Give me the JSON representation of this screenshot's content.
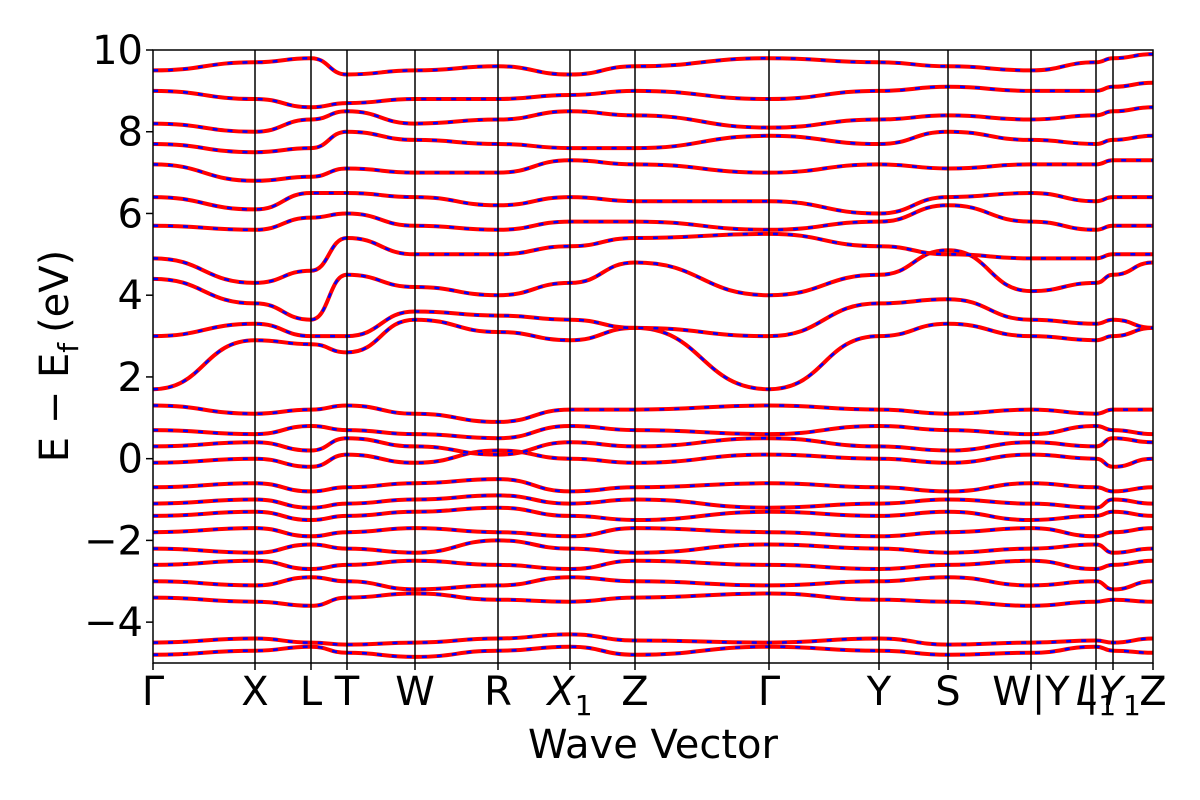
{
  "chart_data": {
    "type": "line",
    "title": "",
    "xlabel": "Wave Vector",
    "ylabel": "E − E",
    "ylabel_subscript": "f",
    "ylabel_unit": "(eV)",
    "ylim": [
      -5,
      10
    ],
    "yticks": [
      -4,
      -2,
      0,
      2,
      4,
      6,
      8,
      10
    ],
    "ytick_labels": [
      "−4",
      "−2",
      "0",
      "2",
      "4",
      "6",
      "8",
      "10"
    ],
    "grid": false,
    "legend": "none",
    "colors": {
      "series_a": "#ff0000",
      "series_b": "#0000ff",
      "vlines": "#000000"
    },
    "style": "red solid bands overlaid with blue dashed bands",
    "path_points": [
      {
        "label": "Γ",
        "sub": "",
        "k": 0.0
      },
      {
        "label": "X",
        "sub": "",
        "k": 1.02
      },
      {
        "label": "L",
        "sub": "",
        "k": 1.58
      },
      {
        "label": "T",
        "sub": "",
        "k": 1.94
      },
      {
        "label": "W",
        "sub": "",
        "k": 2.62
      },
      {
        "label": "R",
        "sub": "",
        "k": 3.45
      },
      {
        "label": "X",
        "sub": "1",
        "k": 4.17
      },
      {
        "label": "Z",
        "sub": "",
        "k": 4.82
      },
      {
        "label": "Γ",
        "sub": "",
        "k": 6.16
      },
      {
        "label": "Y",
        "sub": "",
        "k": 7.26
      },
      {
        "label": "S",
        "sub": "",
        "k": 7.95
      },
      {
        "label": "W|Y",
        "sub": "",
        "k": 8.78
      },
      {
        "label": "L",
        "sub": "1",
        "k": 9.43
      },
      {
        "label": "|Y",
        "sub": "1",
        "k": 9.6
      },
      {
        "label": "Z",
        "sub": "",
        "k": 10.0
      }
    ],
    "bands": [
      {
        "name": "",
        "y": [
          -4.8,
          -4.7,
          -4.6,
          -4.75,
          -4.85,
          -4.7,
          -4.6,
          -4.8,
          -4.6,
          -4.7,
          -4.8,
          -4.75,
          -4.6,
          -4.7,
          -4.75
        ]
      },
      {
        "name": "",
        "y": [
          -4.5,
          -4.4,
          -4.5,
          -4.55,
          -4.5,
          -4.4,
          -4.3,
          -4.45,
          -4.5,
          -4.4,
          -4.55,
          -4.5,
          -4.45,
          -4.5,
          -4.4
        ]
      },
      {
        "name": "",
        "y": [
          -3.4,
          -3.5,
          -3.6,
          -3.4,
          -3.3,
          -3.45,
          -3.5,
          -3.4,
          -3.3,
          -3.45,
          -3.5,
          -3.6,
          -3.5,
          -3.45,
          -3.5
        ]
      },
      {
        "name": "",
        "y": [
          -3.0,
          -3.1,
          -2.9,
          -3.0,
          -3.2,
          -3.1,
          -2.9,
          -3.0,
          -3.1,
          -3.0,
          -2.9,
          -3.1,
          -3.0,
          -3.2,
          -3.0
        ]
      },
      {
        "name": "",
        "y": [
          -2.6,
          -2.5,
          -2.7,
          -2.6,
          -2.5,
          -2.6,
          -2.7,
          -2.5,
          -2.6,
          -2.7,
          -2.6,
          -2.5,
          -2.7,
          -2.6,
          -2.5
        ]
      },
      {
        "name": "",
        "y": [
          -2.2,
          -2.3,
          -2.1,
          -2.2,
          -2.3,
          -2.0,
          -2.2,
          -2.3,
          -2.1,
          -2.2,
          -2.3,
          -2.2,
          -2.1,
          -2.3,
          -2.2
        ]
      },
      {
        "name": "",
        "y": [
          -1.8,
          -1.7,
          -1.9,
          -1.8,
          -1.7,
          -1.8,
          -1.9,
          -1.7,
          -1.8,
          -1.9,
          -1.8,
          -1.7,
          -1.9,
          -1.8,
          -1.7
        ]
      },
      {
        "name": "",
        "y": [
          -1.4,
          -1.3,
          -1.5,
          -1.4,
          -1.3,
          -1.2,
          -1.4,
          -1.5,
          -1.3,
          -1.4,
          -1.3,
          -1.5,
          -1.4,
          -1.3,
          -1.4
        ]
      },
      {
        "name": "",
        "y": [
          -1.1,
          -1.0,
          -1.2,
          -1.1,
          -1.0,
          -0.9,
          -1.1,
          -1.0,
          -1.2,
          -1.1,
          -1.0,
          -1.1,
          -1.2,
          -1.0,
          -1.1
        ]
      },
      {
        "name": "",
        "y": [
          -0.7,
          -0.6,
          -0.8,
          -0.7,
          -0.6,
          -0.5,
          -0.8,
          -0.7,
          -0.6,
          -0.7,
          -0.8,
          -0.6,
          -0.7,
          -0.8,
          -0.7
        ]
      },
      {
        "name": "",
        "y": [
          -0.1,
          0.0,
          -0.2,
          0.1,
          -0.1,
          0.2,
          0.0,
          -0.1,
          0.1,
          0.0,
          -0.1,
          0.1,
          0.0,
          -0.2,
          0.0
        ]
      },
      {
        "name": "",
        "y": [
          0.3,
          0.4,
          0.2,
          0.5,
          0.3,
          0.1,
          0.4,
          0.3,
          0.5,
          0.3,
          0.2,
          0.4,
          0.3,
          0.5,
          0.4
        ]
      },
      {
        "name": "",
        "y": [
          0.7,
          0.6,
          0.8,
          0.7,
          0.6,
          0.5,
          0.8,
          0.7,
          0.6,
          0.8,
          0.7,
          0.6,
          0.8,
          0.7,
          0.6
        ]
      },
      {
        "name": "",
        "y": [
          1.3,
          1.1,
          1.2,
          1.3,
          1.1,
          0.9,
          1.2,
          1.2,
          1.3,
          1.2,
          1.1,
          1.2,
          1.1,
          1.2,
          1.2
        ]
      },
      {
        "name": "",
        "y": [
          1.7,
          2.9,
          2.8,
          2.6,
          3.4,
          3.1,
          2.9,
          3.2,
          1.7,
          3.0,
          3.3,
          3.0,
          2.9,
          3.0,
          3.2
        ]
      },
      {
        "name": "",
        "y": [
          3.0,
          3.3,
          3.0,
          3.0,
          3.6,
          3.5,
          3.4,
          3.2,
          3.0,
          3.8,
          3.9,
          3.4,
          3.3,
          3.4,
          3.2
        ]
      },
      {
        "name": "",
        "y": [
          4.4,
          3.8,
          3.4,
          4.5,
          4.2,
          4.0,
          4.3,
          4.8,
          4.0,
          4.5,
          5.1,
          4.1,
          4.3,
          4.5,
          4.8
        ]
      },
      {
        "name": "",
        "y": [
          4.9,
          4.3,
          4.6,
          5.4,
          5.0,
          5.0,
          5.2,
          5.4,
          5.5,
          5.2,
          5.0,
          4.9,
          4.9,
          5.0,
          5.0
        ]
      },
      {
        "name": "",
        "y": [
          5.7,
          5.6,
          5.9,
          6.0,
          5.7,
          5.6,
          5.8,
          5.8,
          5.6,
          5.8,
          6.2,
          5.8,
          5.6,
          5.7,
          5.7
        ]
      },
      {
        "name": "",
        "y": [
          6.4,
          6.1,
          6.5,
          6.5,
          6.4,
          6.2,
          6.4,
          6.3,
          6.3,
          6.0,
          6.4,
          6.5,
          6.3,
          6.4,
          6.4
        ]
      },
      {
        "name": "",
        "y": [
          7.2,
          6.8,
          6.9,
          7.1,
          7.0,
          7.0,
          7.3,
          7.2,
          7.0,
          7.2,
          7.1,
          7.2,
          7.2,
          7.3,
          7.3
        ]
      },
      {
        "name": "",
        "y": [
          7.7,
          7.5,
          7.6,
          8.0,
          7.8,
          7.7,
          7.6,
          7.6,
          7.9,
          7.7,
          8.0,
          7.8,
          7.7,
          7.8,
          7.9
        ]
      },
      {
        "name": "",
        "y": [
          8.2,
          8.0,
          8.3,
          8.5,
          8.2,
          8.3,
          8.5,
          8.4,
          8.1,
          8.3,
          8.4,
          8.3,
          8.4,
          8.5,
          8.6
        ]
      },
      {
        "name": "",
        "y": [
          9.0,
          8.8,
          8.6,
          8.7,
          8.8,
          8.8,
          8.9,
          9.0,
          8.8,
          9.0,
          9.1,
          9.0,
          9.0,
          9.1,
          9.2
        ]
      },
      {
        "name": "",
        "y": [
          9.5,
          9.7,
          9.8,
          9.4,
          9.5,
          9.6,
          9.4,
          9.6,
          9.8,
          9.7,
          9.6,
          9.5,
          9.7,
          9.8,
          9.9
        ]
      }
    ]
  }
}
